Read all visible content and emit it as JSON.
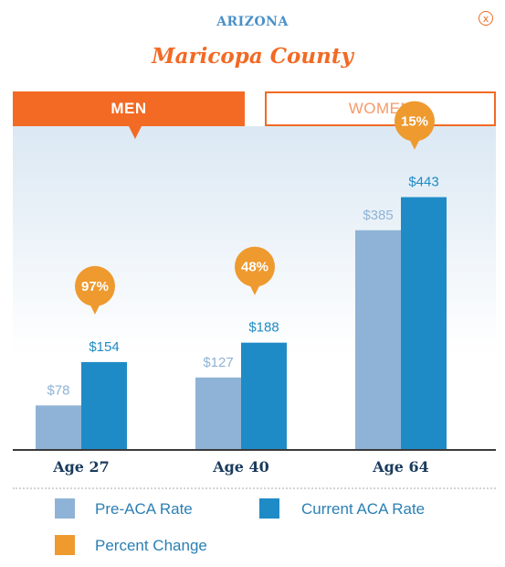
{
  "header": {
    "state": "ARIZONA",
    "county": "Maricopa County",
    "close_label": "x"
  },
  "tabs": {
    "men": "MEN",
    "women": "WOMEN",
    "active": "men"
  },
  "colors": {
    "accent": "#f26a24",
    "pre_aca": "#8fb3d6",
    "current_aca": "#1f8bc6",
    "percent_change": "#ee9a2f",
    "text_blue": "#2b7fb4"
  },
  "chart_data": {
    "type": "bar",
    "categories": [
      "Age 27",
      "Age 40",
      "Age 64"
    ],
    "series": [
      {
        "name": "Pre-ACA Rate",
        "values": [
          78,
          127,
          385
        ],
        "labels": [
          "$78",
          "$127",
          "$385"
        ]
      },
      {
        "name": "Current ACA Rate",
        "values": [
          154,
          188,
          443
        ],
        "labels": [
          "$154",
          "$188",
          "$443"
        ]
      }
    ],
    "percent_change": {
      "name": "Percent Change",
      "values": [
        97,
        48,
        15
      ],
      "labels": [
        "97%",
        "48%",
        "15%"
      ]
    },
    "ylim": [
      0,
      500
    ],
    "grid": false,
    "legend_position": "bottom"
  },
  "legend": {
    "pre_aca": "Pre-ACA Rate",
    "current_aca": "Current ACA Rate",
    "percent_change": "Percent Change"
  }
}
